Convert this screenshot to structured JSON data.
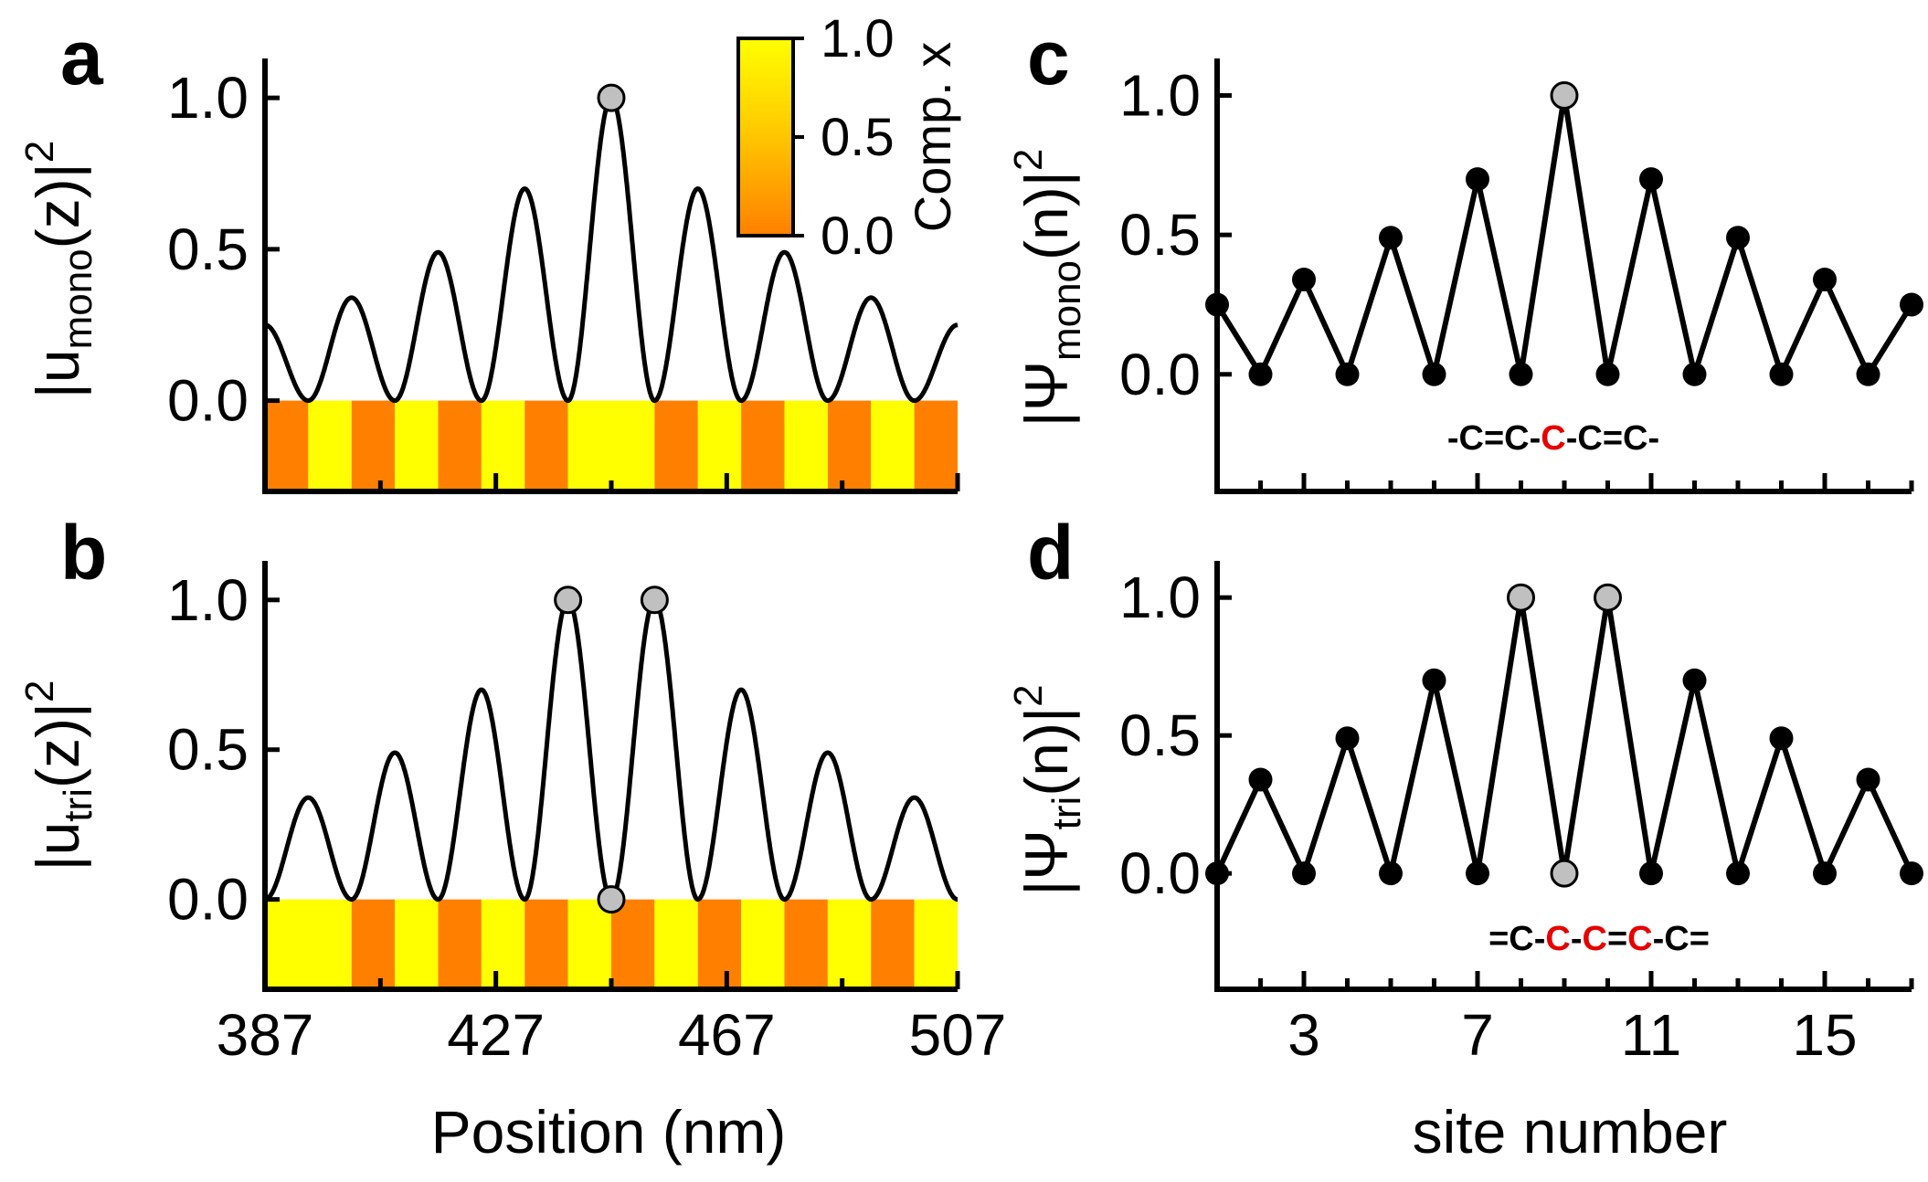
{
  "colors": {
    "curve": "#000000",
    "marker_black": "#000000",
    "marker_gray": "#c0c0c0",
    "stripe_yellow": "#ffff00",
    "stripe_orange": "#ff8000",
    "highlight_red": "#e60000"
  },
  "chart_data": [
    {
      "panel": "a",
      "type": "line",
      "ylabel_parts": [
        "|u",
        "mono",
        "(z)|",
        "2"
      ],
      "xlim": [
        387,
        507
      ],
      "ylim": [
        -0.3,
        1.1
      ],
      "yticks": [
        "0.0",
        "0.5",
        "1.0"
      ],
      "ytick_values": [
        0,
        0.5,
        1
      ],
      "grid": false,
      "waveform": {
        "center": 447,
        "period": 15,
        "peaks": [
          {
            "x": 387,
            "y": 0.25
          },
          {
            "x": 402,
            "y": 0.34
          },
          {
            "x": 417,
            "y": 0.49
          },
          {
            "x": 432,
            "y": 0.7
          },
          {
            "x": 447,
            "y": 1.0
          },
          {
            "x": 462,
            "y": 0.7
          },
          {
            "x": 477,
            "y": 0.49
          },
          {
            "x": 492,
            "y": 0.34
          },
          {
            "x": 507,
            "y": 0.25
          }
        ]
      },
      "markers": [
        {
          "x": 447,
          "y": 1.0,
          "color": "gray"
        }
      ],
      "composition_stripes": [
        {
          "x0": 387,
          "x1": 394.5,
          "value": 0
        },
        {
          "x0": 394.5,
          "x1": 402,
          "value": 1
        },
        {
          "x0": 402,
          "x1": 409.5,
          "value": 0
        },
        {
          "x0": 409.5,
          "x1": 417,
          "value": 1
        },
        {
          "x0": 417,
          "x1": 424.5,
          "value": 0
        },
        {
          "x0": 424.5,
          "x1": 432,
          "value": 1
        },
        {
          "x0": 432,
          "x1": 439.5,
          "value": 0
        },
        {
          "x0": 439.5,
          "x1": 454.5,
          "value": 1
        },
        {
          "x0": 454.5,
          "x1": 462,
          "value": 0
        },
        {
          "x0": 462,
          "x1": 469.5,
          "value": 1
        },
        {
          "x0": 469.5,
          "x1": 477,
          "value": 0
        },
        {
          "x0": 477,
          "x1": 484.5,
          "value": 1
        },
        {
          "x0": 484.5,
          "x1": 492,
          "value": 0
        },
        {
          "x0": 492,
          "x1": 499.5,
          "value": 1
        },
        {
          "x0": 499.5,
          "x1": 507,
          "value": 0
        }
      ]
    },
    {
      "panel": "b",
      "type": "line",
      "ylabel_parts": [
        "|u",
        "tri",
        "(z)|",
        "2"
      ],
      "xlabel": "Position (nm)",
      "xlim": [
        387,
        507
      ],
      "ylim": [
        -0.3,
        1.1
      ],
      "xticks": [
        "387",
        "427",
        "467",
        "507"
      ],
      "xtick_values": [
        387,
        427,
        467,
        507
      ],
      "yticks": [
        "0.0",
        "0.5",
        "1.0"
      ],
      "ytick_values": [
        0,
        0.5,
        1
      ],
      "grid": false,
      "waveform": {
        "center": 447,
        "period": 15,
        "peaks": [
          {
            "x": 394.5,
            "y": 0.34
          },
          {
            "x": 409.5,
            "y": 0.49
          },
          {
            "x": 424.5,
            "y": 0.7
          },
          {
            "x": 439.5,
            "y": 1.0
          },
          {
            "x": 454.5,
            "y": 1.0
          },
          {
            "x": 469.5,
            "y": 0.7
          },
          {
            "x": 484.5,
            "y": 0.49
          },
          {
            "x": 499.5,
            "y": 0.34
          }
        ]
      },
      "markers": [
        {
          "x": 439.5,
          "y": 1.0,
          "color": "gray"
        },
        {
          "x": 454.5,
          "y": 1.0,
          "color": "gray"
        },
        {
          "x": 447,
          "y": 0.0,
          "color": "gray"
        }
      ],
      "composition_stripes": [
        {
          "x0": 387,
          "x1": 402,
          "value": 1
        },
        {
          "x0": 402,
          "x1": 409.5,
          "value": 0
        },
        {
          "x0": 409.5,
          "x1": 417,
          "value": 1
        },
        {
          "x0": 417,
          "x1": 424.5,
          "value": 0
        },
        {
          "x0": 424.5,
          "x1": 432,
          "value": 1
        },
        {
          "x0": 432,
          "x1": 439.5,
          "value": 0
        },
        {
          "x0": 439.5,
          "x1": 447,
          "value": 1
        },
        {
          "x0": 447,
          "x1": 454.5,
          "value": 0
        },
        {
          "x0": 454.5,
          "x1": 462,
          "value": 1
        },
        {
          "x0": 462,
          "x1": 469.5,
          "value": 0
        },
        {
          "x0": 469.5,
          "x1": 477,
          "value": 1
        },
        {
          "x0": 477,
          "x1": 484.5,
          "value": 0
        },
        {
          "x0": 484.5,
          "x1": 492,
          "value": 1
        },
        {
          "x0": 492,
          "x1": 499.5,
          "value": 0
        },
        {
          "x0": 499.5,
          "x1": 507,
          "value": 1
        }
      ]
    },
    {
      "panel": "c",
      "type": "line",
      "ylabel_parts": [
        "|Ψ",
        "mono",
        "(n)|",
        "2"
      ],
      "xlim": [
        1,
        17
      ],
      "ylim": [
        -0.42,
        1.1
      ],
      "yticks": [
        "0.0",
        "0.5",
        "1.0"
      ],
      "ytick_values": [
        0,
        0.5,
        1
      ],
      "grid": false,
      "series": [
        {
          "x": [
            1,
            2,
            3,
            4,
            5,
            6,
            7,
            8,
            9,
            10,
            11,
            12,
            13,
            14,
            15,
            16,
            17
          ],
          "y": [
            0.25,
            0,
            0.34,
            0,
            0.49,
            0,
            0.7,
            0,
            1.0,
            0,
            0.7,
            0,
            0.49,
            0,
            0.34,
            0,
            0.25
          ],
          "marker_colors": [
            "black",
            "black",
            "black",
            "black",
            "black",
            "black",
            "black",
            "black",
            "gray",
            "black",
            "black",
            "black",
            "black",
            "black",
            "black",
            "black",
            "black"
          ]
        }
      ],
      "molecule": [
        {
          "t": "-",
          "c": "black"
        },
        {
          "t": "C",
          "c": "black"
        },
        {
          "t": "=",
          "c": "black"
        },
        {
          "t": "C",
          "c": "black"
        },
        {
          "t": "-",
          "c": "black"
        },
        {
          "t": "C",
          "c": "red"
        },
        {
          "t": "-",
          "c": "black"
        },
        {
          "t": "C",
          "c": "black"
        },
        {
          "t": "=",
          "c": "black"
        },
        {
          "t": "C",
          "c": "black"
        },
        {
          "t": "-",
          "c": "black"
        }
      ]
    },
    {
      "panel": "d",
      "type": "line",
      "ylabel_parts": [
        "|Ψ",
        "tri",
        "(n)|",
        "2"
      ],
      "xlabel": "site number",
      "xlim": [
        1,
        17
      ],
      "ylim": [
        -0.42,
        1.1
      ],
      "xticks": [
        "3",
        "7",
        "11",
        "15"
      ],
      "xtick_values": [
        3,
        7,
        11,
        15
      ],
      "yticks": [
        "0.0",
        "0.5",
        "1.0"
      ],
      "ytick_values": [
        0,
        0.5,
        1
      ],
      "grid": false,
      "series": [
        {
          "x": [
            1,
            2,
            3,
            4,
            5,
            6,
            7,
            8,
            9,
            10,
            11,
            12,
            13,
            14,
            15,
            16,
            17
          ],
          "y": [
            0,
            0.34,
            0,
            0.49,
            0,
            0.7,
            0,
            1.0,
            0,
            1.0,
            0,
            0.7,
            0,
            0.49,
            0,
            0.34,
            0
          ],
          "marker_colors": [
            "black",
            "black",
            "black",
            "black",
            "black",
            "black",
            "black",
            "gray",
            "gray",
            "gray",
            "black",
            "black",
            "black",
            "black",
            "black",
            "black",
            "black"
          ]
        }
      ],
      "molecule": [
        {
          "t": "=",
          "c": "black"
        },
        {
          "t": "C",
          "c": "black"
        },
        {
          "t": "-",
          "c": "black"
        },
        {
          "t": "C",
          "c": "red"
        },
        {
          "t": "-",
          "c": "black"
        },
        {
          "t": "C",
          "c": "red"
        },
        {
          "t": "=",
          "c": "black"
        },
        {
          "t": "C",
          "c": "red"
        },
        {
          "t": "-",
          "c": "black"
        },
        {
          "t": "C",
          "c": "black"
        },
        {
          "t": "=",
          "c": "black"
        }
      ]
    }
  ],
  "colorbar": {
    "title": "Comp. x",
    "labels": [
      "1.0",
      "0.5",
      "0.0"
    ],
    "values": [
      1,
      0.5,
      0
    ]
  }
}
